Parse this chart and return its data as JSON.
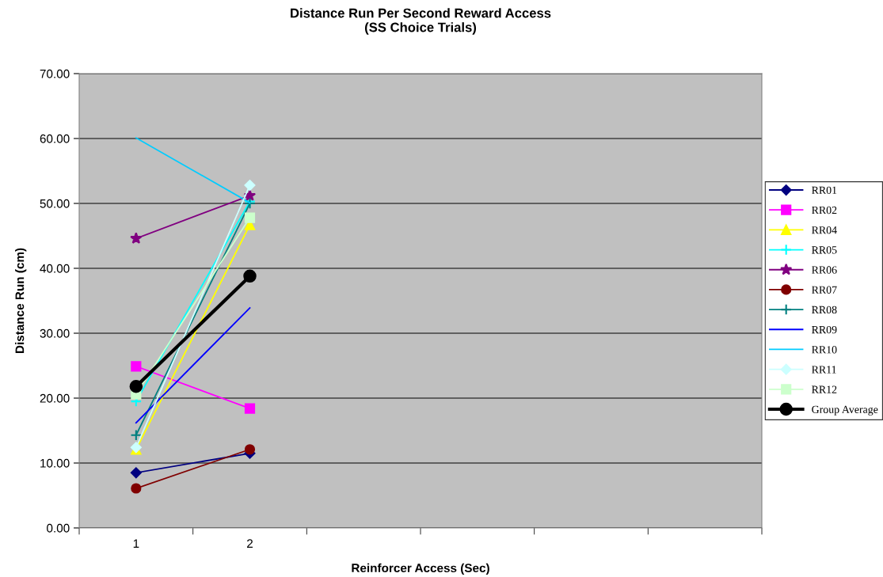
{
  "chart_data": {
    "type": "line",
    "title": "Distance Run Per Second Reward Access\n(SS Choice Trials)",
    "xlabel": "Reinforcer Access (Sec)",
    "ylabel": "Distance Run (cm)",
    "categories": [
      "1",
      "2",
      null,
      null,
      null,
      null
    ],
    "ylim": [
      0,
      70
    ],
    "yticks": [
      {
        "value": 0,
        "label": "0.00"
      },
      {
        "value": 10,
        "label": "10.00"
      },
      {
        "value": 20,
        "label": "20.00"
      },
      {
        "value": 30,
        "label": "30.00"
      },
      {
        "value": 40,
        "label": "40.00"
      },
      {
        "value": 50,
        "label": "50.00"
      },
      {
        "value": 60,
        "label": "60.00"
      },
      {
        "value": 70,
        "label": "70.00"
      }
    ],
    "grid": "y",
    "legend": "right",
    "series": [
      {
        "name": "RR01",
        "color": "#000080",
        "marker": "diamond",
        "values": [
          8.5,
          11.5,
          null,
          null,
          null,
          null
        ]
      },
      {
        "name": "RR02",
        "color": "#ff00ff",
        "marker": "square",
        "values": [
          24.9,
          18.4,
          null,
          null,
          null,
          null
        ]
      },
      {
        "name": "RR04",
        "color": "#ffff00",
        "marker": "triangle",
        "values": [
          12.1,
          46.7,
          null,
          null,
          null,
          null
        ]
      },
      {
        "name": "RR05",
        "color": "#00ffff",
        "marker": "cross",
        "values": [
          19.5,
          50.3,
          null,
          null,
          null,
          null
        ]
      },
      {
        "name": "RR06",
        "color": "#800080",
        "marker": "star",
        "values": [
          44.6,
          51.2,
          null,
          null,
          null,
          null
        ]
      },
      {
        "name": "RR07",
        "color": "#800000",
        "marker": "circle",
        "values": [
          6.1,
          12.1,
          null,
          null,
          null,
          null
        ]
      },
      {
        "name": "RR08",
        "color": "#008080",
        "marker": "cross",
        "values": [
          14.3,
          50.0,
          null,
          null,
          null,
          null
        ]
      },
      {
        "name": "RR09",
        "color": "#0000ff",
        "marker": "none",
        "values": [
          16.2,
          33.9,
          null,
          null,
          null,
          null
        ]
      },
      {
        "name": "RR10",
        "color": "#00ccff",
        "marker": "none",
        "values": [
          60.1,
          50.1,
          null,
          null,
          null,
          null
        ]
      },
      {
        "name": "RR11",
        "color": "#ccffff",
        "marker": "diamond",
        "values": [
          12.4,
          52.8,
          null,
          null,
          null,
          null
        ]
      },
      {
        "name": "RR12",
        "color": "#ccffcc",
        "marker": "square",
        "values": [
          20.6,
          47.8,
          null,
          null,
          null,
          null
        ]
      },
      {
        "name": "Group Average",
        "color": "#000000",
        "marker": "circle",
        "values": [
          21.8,
          38.8,
          null,
          null,
          null,
          null
        ]
      }
    ]
  }
}
